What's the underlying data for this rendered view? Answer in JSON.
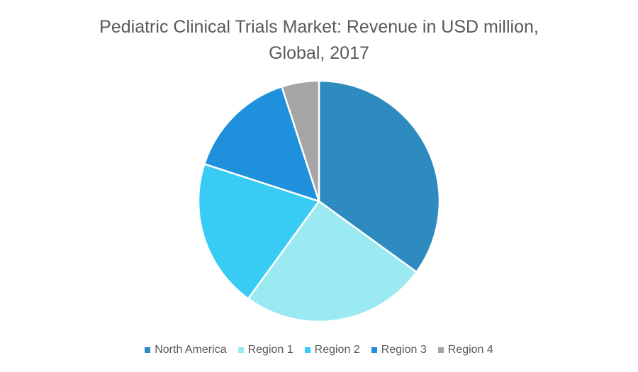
{
  "chart_data": {
    "type": "pie",
    "title_line1": "Pediatric Clinical Trials Market: Revenue in USD million,",
    "title_line2": "Global, 2017",
    "slices": [
      {
        "label": "North America",
        "value": 35,
        "color": "#2E8BC0"
      },
      {
        "label": "Region 1",
        "value": 25,
        "color": "#9BEAF2"
      },
      {
        "label": "Region 2",
        "value": 20,
        "color": "#38CBF4"
      },
      {
        "label": "Region 3",
        "value": 15,
        "color": "#1E90DC"
      },
      {
        "label": "Region 4",
        "value": 5,
        "color": "#A5A5A5"
      }
    ],
    "start": "12 o'clock",
    "direction": "clockwise",
    "legend_position": "bottom"
  }
}
